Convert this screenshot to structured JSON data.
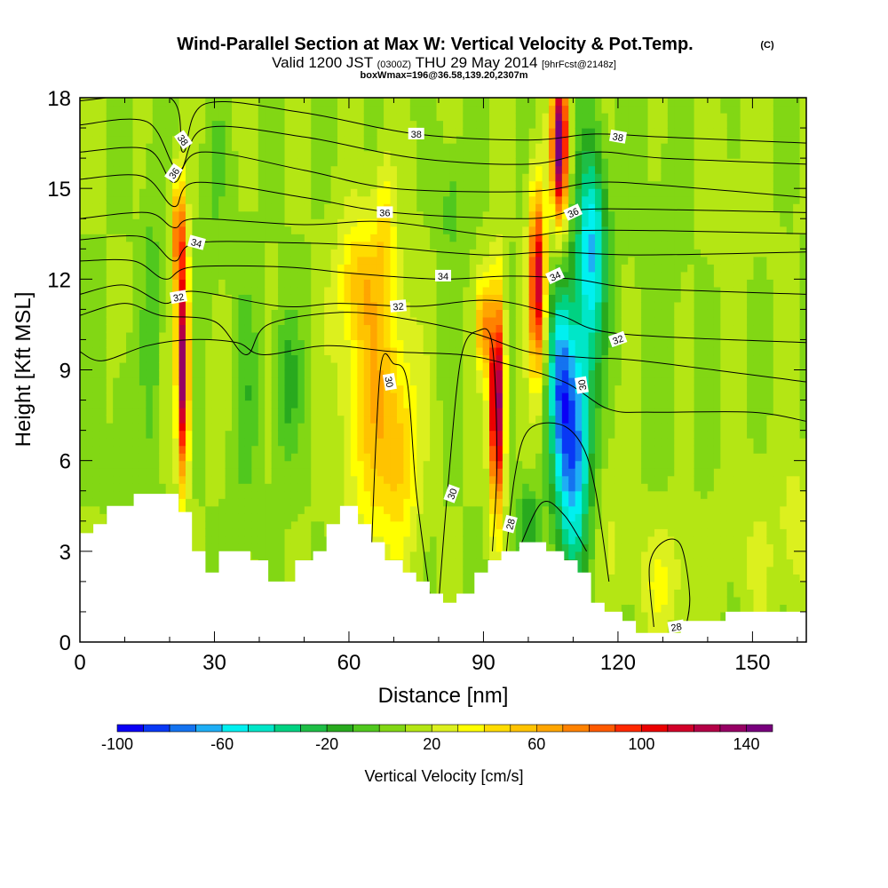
{
  "chart_data": {
    "type": "heatmap",
    "title": "Wind-Parallel Section at Max W: Vertical Velocity & Pot.Temp.",
    "title_mark": "(C)",
    "subtitle": {
      "valid": "Valid 1200 JST",
      "zulu": "(0300Z)",
      "date": "THU 29 May 2014",
      "forecast": "[9hrFcst@2148z]"
    },
    "box_wmax": "boxWmax=196@36.58,139.20,2307m",
    "xlabel": "Distance [nm]",
    "ylabel": "Height [Kft MSL]",
    "xlim": [
      0,
      162
    ],
    "ylim": [
      0,
      18
    ],
    "x_ticks": [
      {
        "value": 0,
        "label": "0"
      },
      {
        "value": 30,
        "label": "30"
      },
      {
        "value": 60,
        "label": "60"
      },
      {
        "value": 90,
        "label": "90"
      },
      {
        "value": 120,
        "label": "120"
      },
      {
        "value": 150,
        "label": "150"
      }
    ],
    "y_ticks": [
      {
        "value": 0,
        "label": "0"
      },
      {
        "value": 3,
        "label": "3"
      },
      {
        "value": 6,
        "label": "6"
      },
      {
        "value": 9,
        "label": "9"
      },
      {
        "value": 12,
        "label": "12"
      },
      {
        "value": 15,
        "label": "15"
      },
      {
        "value": 18,
        "label": "18"
      }
    ],
    "colorbar": {
      "label": "Vertical Velocity [cm/s]",
      "min": -100,
      "max": 150,
      "step": 10,
      "tick_labels": [
        {
          "value": -100,
          "label": "-100"
        },
        {
          "value": -60,
          "label": "-60"
        },
        {
          "value": -20,
          "label": "-20"
        },
        {
          "value": 20,
          "label": "20"
        },
        {
          "value": 60,
          "label": "60"
        },
        {
          "value": 100,
          "label": "100"
        },
        {
          "value": 140,
          "label": "140"
        }
      ],
      "colors": [
        "#0a00f5",
        "#0838f5",
        "#1473f0",
        "#1eaef5",
        "#00f0f0",
        "#00e6c8",
        "#00d282",
        "#1ebe46",
        "#28aa1e",
        "#50c81e",
        "#82d714",
        "#b4e614",
        "#dcf01e",
        "#ffff00",
        "#ffdc00",
        "#ffc300",
        "#ffa500",
        "#ff8200",
        "#ff5a00",
        "#ff2800",
        "#eb0000",
        "#d20028",
        "#b40046",
        "#960064",
        "#78007d"
      ]
    },
    "terrain": [
      [
        0,
        3.6
      ],
      [
        3,
        3.6
      ],
      [
        3,
        3.9
      ],
      [
        6,
        3.9
      ],
      [
        6,
        4.5
      ],
      [
        12,
        4.5
      ],
      [
        12,
        4.9
      ],
      [
        22,
        4.9
      ],
      [
        22,
        4.3
      ],
      [
        25,
        4.3
      ],
      [
        25,
        3
      ],
      [
        28,
        3
      ],
      [
        28,
        2.3
      ],
      [
        31,
        2.3
      ],
      [
        31,
        3
      ],
      [
        38,
        3
      ],
      [
        38,
        2.7
      ],
      [
        42,
        2.7
      ],
      [
        42,
        2
      ],
      [
        48,
        2
      ],
      [
        48,
        2.7
      ],
      [
        52,
        2.7
      ],
      [
        52,
        3
      ],
      [
        55,
        3
      ],
      [
        55,
        3.9
      ],
      [
        58,
        3.9
      ],
      [
        58,
        4.5
      ],
      [
        62,
        4.5
      ],
      [
        62,
        3.9
      ],
      [
        65,
        3.9
      ],
      [
        65,
        3.3
      ],
      [
        68,
        3.3
      ],
      [
        68,
        2.7
      ],
      [
        72,
        2.7
      ],
      [
        72,
        2.3
      ],
      [
        75,
        2.3
      ],
      [
        75,
        2
      ],
      [
        78,
        2
      ],
      [
        78,
        1.6
      ],
      [
        81,
        1.6
      ],
      [
        81,
        1.3
      ],
      [
        84,
        1.3
      ],
      [
        84,
        1.6
      ],
      [
        88,
        1.6
      ],
      [
        88,
        2.3
      ],
      [
        91,
        2.3
      ],
      [
        91,
        2.7
      ],
      [
        94,
        2.7
      ],
      [
        94,
        3
      ],
      [
        98,
        3
      ],
      [
        98,
        3.3
      ],
      [
        104,
        3.3
      ],
      [
        104,
        3
      ],
      [
        108,
        3
      ],
      [
        108,
        2.7
      ],
      [
        111,
        2.7
      ],
      [
        111,
        2.3
      ],
      [
        114,
        2.3
      ],
      [
        114,
        1.3
      ],
      [
        117,
        1.3
      ],
      [
        117,
        1
      ],
      [
        121,
        1
      ],
      [
        121,
        0.7
      ],
      [
        124,
        0.7
      ],
      [
        124,
        0.3
      ],
      [
        134,
        0.3
      ],
      [
        134,
        0.7
      ],
      [
        144,
        0.7
      ],
      [
        144,
        1
      ],
      [
        162,
        1
      ]
    ],
    "w_field": {
      "background": 10,
      "features": [
        {
          "x": 110,
          "z": 6.5,
          "sx": 4,
          "sz": 4,
          "w": -90
        },
        {
          "x": 114,
          "z": 13,
          "sx": 3.5,
          "sz": 3.5,
          "w": -70
        },
        {
          "x": 107,
          "z": 9,
          "sx": 2.5,
          "sz": 3,
          "w": -50
        },
        {
          "x": 100,
          "z": 4,
          "sx": 2.5,
          "sz": 1.2,
          "w": -30
        },
        {
          "x": 107,
          "z": 16.5,
          "sx": 1.8,
          "sz": 2.5,
          "w": 140
        },
        {
          "x": 102,
          "z": 12,
          "sx": 1.8,
          "sz": 3,
          "w": 110
        },
        {
          "x": 93,
          "z": 8,
          "sx": 1.6,
          "sz": 3.5,
          "w": 140
        },
        {
          "x": 90,
          "z": 10.5,
          "sx": 1.5,
          "sz": 1.5,
          "w": 60
        },
        {
          "x": 23,
          "z": 9,
          "sx": 1.3,
          "sz": 3.5,
          "w": 130
        },
        {
          "x": 22,
          "z": 13.5,
          "sx": 1.5,
          "sz": 2,
          "w": 70
        },
        {
          "x": 66,
          "z": 8,
          "sx": 7,
          "sz": 5,
          "w": 45
        },
        {
          "x": 72,
          "z": 6,
          "sx": 4,
          "sz": 3,
          "w": 25
        },
        {
          "x": 62,
          "z": 12,
          "sx": 5,
          "sz": 2,
          "w": 30
        },
        {
          "x": 68,
          "z": 14,
          "sx": 2,
          "sz": 2,
          "w": 25
        },
        {
          "x": 46,
          "z": 8.5,
          "sx": 3,
          "sz": 2.5,
          "w": -25
        },
        {
          "x": 37,
          "z": 8,
          "sx": 3,
          "sz": 4,
          "w": -15
        },
        {
          "x": 16,
          "z": 11,
          "sx": 2,
          "sz": 5,
          "w": -15
        },
        {
          "x": 9,
          "z": 7,
          "sx": 2,
          "sz": 3,
          "w": -10
        },
        {
          "x": 83,
          "z": 14.5,
          "sx": 3,
          "sz": 2,
          "w": -15
        },
        {
          "x": 118,
          "z": 4,
          "sx": 4,
          "sz": 3,
          "w": 10
        },
        {
          "x": 130,
          "z": 2,
          "sx": 6,
          "sz": 2,
          "w": 20
        },
        {
          "x": 152,
          "z": 3,
          "sx": 8,
          "sz": 3,
          "w": 10
        },
        {
          "x": 160,
          "z": 4,
          "sx": 3,
          "sz": 2,
          "w": 15
        },
        {
          "x": 30,
          "z": 15,
          "sx": 3,
          "sz": 3,
          "w": -10
        },
        {
          "x": 130,
          "z": 12,
          "sx": 6,
          "sz": 6,
          "w": -5
        },
        {
          "x": 145,
          "z": 15,
          "sx": 8,
          "sz": 3,
          "w": 5
        }
      ]
    },
    "contours": [
      {
        "level": 38,
        "points": [
          [
            0,
            17.9
          ],
          [
            20,
            18
          ],
          [
            23,
            16.2
          ],
          [
            28,
            17.8
          ],
          [
            50,
            17.5
          ],
          [
            75,
            16.8
          ],
          [
            100,
            16.6
          ],
          [
            115,
            16.8
          ],
          [
            130,
            16.7
          ],
          [
            162,
            16.5
          ]
        ]
      },
      {
        "level": 38,
        "points": [
          [
            0,
            17.1
          ],
          [
            15,
            17.2
          ],
          [
            22,
            15.6
          ],
          [
            28,
            17
          ],
          [
            50,
            16.7
          ],
          [
            75,
            16
          ],
          [
            100,
            15.8
          ],
          [
            115,
            16.2
          ],
          [
            130,
            16
          ],
          [
            162,
            15.8
          ]
        ]
      },
      {
        "level": 36,
        "points": [
          [
            0,
            16.2
          ],
          [
            15,
            16.3
          ],
          [
            21,
            15.2
          ],
          [
            27,
            16.2
          ],
          [
            50,
            15.6
          ],
          [
            70,
            15
          ],
          [
            100,
            14.9
          ],
          [
            115,
            15.2
          ],
          [
            130,
            15.1
          ],
          [
            162,
            14.7
          ]
        ]
      },
      {
        "level": 36,
        "points": [
          [
            0,
            15.3
          ],
          [
            14,
            15.4
          ],
          [
            21,
            14.4
          ],
          [
            26,
            15.2
          ],
          [
            50,
            14.7
          ],
          [
            70,
            14.2
          ],
          [
            100,
            14
          ],
          [
            112,
            14.3
          ],
          [
            130,
            14.3
          ],
          [
            162,
            14.2
          ]
        ]
      },
      {
        "level": 36,
        "points": [
          [
            0,
            14
          ],
          [
            15,
            14.2
          ],
          [
            21,
            13.7
          ],
          [
            26,
            14
          ],
          [
            50,
            13.8
          ],
          [
            68,
            13.9
          ],
          [
            95,
            13.4
          ],
          [
            110,
            13.6
          ],
          [
            130,
            13.6
          ],
          [
            162,
            13.5
          ]
        ]
      },
      {
        "level": 34,
        "points": [
          [
            0,
            13.3
          ],
          [
            14,
            13.4
          ],
          [
            21,
            12.6
          ],
          [
            26,
            13.2
          ],
          [
            48,
            13.2
          ],
          [
            65,
            13.1
          ],
          [
            90,
            12.8
          ],
          [
            105,
            12.9
          ],
          [
            125,
            12.8
          ],
          [
            162,
            12.9
          ]
        ]
      },
      {
        "level": 34,
        "points": [
          [
            0,
            12.6
          ],
          [
            12,
            12.6
          ],
          [
            19,
            12
          ],
          [
            25,
            12.4
          ],
          [
            46,
            12.4
          ],
          [
            60,
            12.2
          ],
          [
            80,
            12
          ],
          [
            96,
            12.1
          ],
          [
            110,
            12
          ],
          [
            125,
            11.7
          ],
          [
            162,
            11.5
          ]
        ]
      },
      {
        "level": 32,
        "points": [
          [
            0,
            11.5
          ],
          [
            10,
            11.8
          ],
          [
            19,
            11.2
          ],
          [
            25,
            11.6
          ],
          [
            45,
            11.1
          ],
          [
            58,
            11.2
          ],
          [
            75,
            11.1
          ],
          [
            92,
            11.3
          ],
          [
            107,
            10.8
          ],
          [
            120,
            10.2
          ],
          [
            162,
            9.9
          ]
        ]
      },
      {
        "level": 32,
        "points": [
          [
            0,
            10.8
          ],
          [
            10,
            11.2
          ],
          [
            18,
            10.8
          ],
          [
            30,
            10.6
          ],
          [
            37,
            9.5
          ],
          [
            42,
            10.5
          ],
          [
            58,
            10.9
          ],
          [
            72,
            10.7
          ],
          [
            88,
            10.2
          ],
          [
            100,
            9.6
          ],
          [
            113,
            9.4
          ],
          [
            125,
            9.3
          ],
          [
            162,
            8.6
          ]
        ]
      },
      {
        "level": 30,
        "points": [
          [
            0,
            9.6
          ],
          [
            5,
            9.3
          ],
          [
            15,
            9.8
          ],
          [
            25,
            10
          ],
          [
            35,
            9.9
          ],
          [
            41,
            9.5
          ],
          [
            55,
            9.8
          ],
          [
            70,
            9.6
          ],
          [
            85,
            9.5
          ],
          [
            95,
            9.2
          ],
          [
            108,
            8.6
          ],
          [
            118,
            7.7
          ],
          [
            128,
            7.6
          ],
          [
            150,
            7.6
          ],
          [
            162,
            7.3
          ]
        ]
      },
      {
        "level": 30,
        "points": [
          [
            65,
            3
          ],
          [
            67,
            9
          ],
          [
            70,
            9.2
          ],
          [
            73,
            8.6
          ],
          [
            75,
            5
          ],
          [
            78,
            1.6
          ]
        ]
      },
      {
        "level": 30,
        "points": [
          [
            80,
            1.3
          ],
          [
            82,
            5
          ],
          [
            85,
            9.4
          ],
          [
            89,
            10.3
          ],
          [
            92,
            9.8
          ],
          [
            93,
            6
          ],
          [
            92,
            3
          ]
        ]
      },
      {
        "level": 28,
        "points": [
          [
            95,
            2.8
          ],
          [
            97,
            5.5
          ],
          [
            100,
            7
          ],
          [
            107,
            7.2
          ],
          [
            112,
            6.5
          ],
          [
            115,
            5
          ],
          [
            118,
            2
          ]
        ]
      },
      {
        "level": 28,
        "points": [
          [
            98,
            3.1
          ],
          [
            103,
            4.6
          ],
          [
            108,
            4.2
          ],
          [
            113,
            3
          ]
        ]
      },
      {
        "level": 28,
        "points": [
          [
            128,
            0.5
          ],
          [
            127,
            2.5
          ],
          [
            130,
            3.3
          ],
          [
            134,
            3.2
          ],
          [
            136,
            1.5
          ],
          [
            135,
            0.4
          ]
        ]
      }
    ],
    "contour_labels": [
      {
        "x": 23,
        "y": 16.6,
        "text": "38",
        "angle": 55
      },
      {
        "x": 75,
        "y": 16.8,
        "text": "38",
        "angle": 0
      },
      {
        "x": 120,
        "y": 16.7,
        "text": "38",
        "angle": 10
      },
      {
        "x": 21,
        "y": 15.5,
        "text": "36",
        "angle": -55
      },
      {
        "x": 68,
        "y": 14.2,
        "text": "36",
        "angle": 0
      },
      {
        "x": 110,
        "y": 14.2,
        "text": "36",
        "angle": -25
      },
      {
        "x": 26,
        "y": 13.2,
        "text": "34",
        "angle": 15
      },
      {
        "x": 81,
        "y": 12.1,
        "text": "34",
        "angle": 0
      },
      {
        "x": 106,
        "y": 12.1,
        "text": "34",
        "angle": -25
      },
      {
        "x": 22,
        "y": 11.4,
        "text": "32",
        "angle": -10
      },
      {
        "x": 71,
        "y": 11.1,
        "text": "32",
        "angle": -5
      },
      {
        "x": 120,
        "y": 10,
        "text": "32",
        "angle": -20
      },
      {
        "x": 69,
        "y": 8.6,
        "text": "30",
        "angle": 80
      },
      {
        "x": 112,
        "y": 8.5,
        "text": "30",
        "angle": -100
      },
      {
        "x": 83,
        "y": 4.9,
        "text": "30",
        "angle": -70
      },
      {
        "x": 96,
        "y": 3.9,
        "text": "28",
        "angle": -75
      },
      {
        "x": 133,
        "y": 0.5,
        "text": "28",
        "angle": -10
      }
    ]
  }
}
